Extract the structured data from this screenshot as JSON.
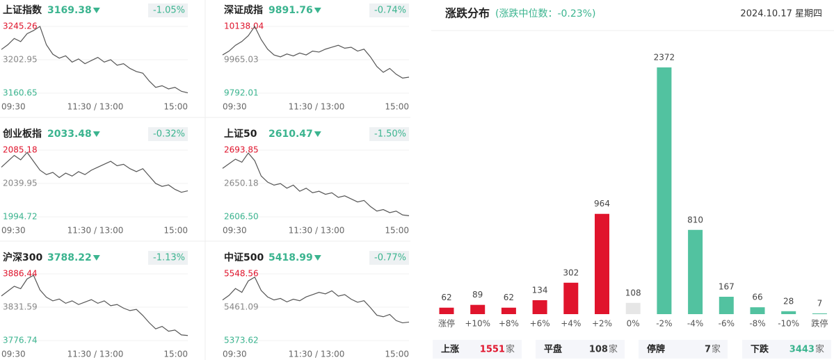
{
  "chart_data": [
    {
      "type": "line",
      "title": "上证指数",
      "price": "3169.38",
      "change": "-1.05%",
      "color": "#555555",
      "xtick_labels": [
        "09:30",
        "11:30 / 13:00",
        "15:00"
      ],
      "ylim": [
        3160.65,
        3245.26
      ],
      "yticks": [
        3160.65,
        3202.95,
        3245.26
      ],
      "tick_colors": [
        "#3bb48f",
        "#888888",
        "#e0142c"
      ],
      "grid": true,
      "values": [
        3216,
        3222,
        3230,
        3226,
        3236,
        3240,
        3245.26,
        3222,
        3210,
        3205,
        3208,
        3200,
        3204,
        3198,
        3202,
        3206,
        3200,
        3203,
        3196,
        3198,
        3192,
        3188,
        3186,
        3176,
        3168,
        3170,
        3166,
        3168,
        3163,
        3161
      ]
    },
    {
      "type": "line",
      "title": "深证成指",
      "price": "9891.76",
      "change": "-0.74%",
      "color": "#555555",
      "xtick_labels": [
        "09:30",
        "11:30 / 13:00",
        "15:00"
      ],
      "ylim": [
        9792.01,
        10138.04
      ],
      "yticks": [
        9792.01,
        9965.03,
        10138.04
      ],
      "tick_colors": [
        "#3bb48f",
        "#888888",
        "#e0142c"
      ],
      "grid": true,
      "values": [
        9990,
        10010,
        10040,
        10060,
        10090,
        10138,
        10070,
        10020,
        9990,
        9980,
        9995,
        9985,
        10000,
        9990,
        10010,
        10005,
        10020,
        10030,
        10040,
        10025,
        10030,
        10010,
        10020,
        9980,
        9930,
        9900,
        9920,
        9890,
        9870,
        9875
      ]
    },
    {
      "type": "line",
      "title": "创业板指",
      "price": "2033.48",
      "change": "-0.32%",
      "color": "#555555",
      "xtick_labels": [
        "09:30",
        "11:30 / 13:00",
        "15:00"
      ],
      "ylim": [
        1994.72,
        2085.18
      ],
      "yticks": [
        1994.72,
        2039.95,
        2085.18
      ],
      "tick_colors": [
        "#3bb48f",
        "#888888",
        "#e0142c"
      ],
      "grid": true,
      "values": [
        2062,
        2070,
        2078,
        2072,
        2082,
        2070,
        2058,
        2052,
        2055,
        2048,
        2054,
        2050,
        2056,
        2052,
        2058,
        2062,
        2066,
        2070,
        2064,
        2066,
        2060,
        2056,
        2060,
        2050,
        2040,
        2036,
        2038,
        2032,
        2028,
        2030
      ]
    },
    {
      "type": "line",
      "title": "上证50",
      "price": "2610.47",
      "change": "-1.50%",
      "color": "#555555",
      "xtick_labels": [
        "09:30",
        "11:30 / 13:00",
        "15:00"
      ],
      "ylim": [
        2606.5,
        2693.85
      ],
      "yticks": [
        {
          "value": 2606.5,
          "label": "2606.50"
        },
        2650.18,
        2693.85
      ],
      "tick_colors": [
        "#3bb48f",
        "#888888",
        "#e0142c"
      ],
      "grid": true,
      "values": [
        2670,
        2676,
        2682,
        2678,
        2690,
        2680,
        2660,
        2652,
        2648,
        2650,
        2644,
        2648,
        2640,
        2644,
        2638,
        2640,
        2636,
        2638,
        2632,
        2634,
        2630,
        2626,
        2628,
        2620,
        2614,
        2616,
        2612,
        2614,
        2609,
        2608
      ]
    },
    {
      "type": "line",
      "title": "沪深300",
      "price": "3788.22",
      "change": "-1.13%",
      "color": "#555555",
      "xtick_labels": [
        "09:30",
        "11:30 / 13:00",
        "15:00"
      ],
      "ylim": [
        3776.74,
        3886.44
      ],
      "yticks": [
        3776.74,
        3831.59,
        3886.44
      ],
      "tick_colors": [
        "#3bb48f",
        "#888888",
        "#e0142c"
      ],
      "grid": true,
      "values": [
        3850,
        3858,
        3866,
        3862,
        3878,
        3884,
        3860,
        3848,
        3842,
        3845,
        3838,
        3842,
        3836,
        3840,
        3844,
        3838,
        3842,
        3834,
        3836,
        3830,
        3826,
        3828,
        3818,
        3806,
        3796,
        3800,
        3792,
        3794,
        3786,
        3785
      ]
    },
    {
      "type": "line",
      "title": "中证500",
      "price": "5418.99",
      "change": "-0.77%",
      "color": "#555555",
      "xtick_labels": [
        "09:30",
        "11:30 / 13:00",
        "15:00"
      ],
      "ylim": [
        5373.62,
        5548.56
      ],
      "yticks": [
        5373.62,
        5461.09,
        5548.56
      ],
      "tick_colors": [
        "#3bb48f",
        "#888888",
        "#e0142c"
      ],
      "grid": true,
      "values": [
        5480,
        5492,
        5510,
        5500,
        5530,
        5540,
        5505,
        5488,
        5480,
        5484,
        5475,
        5482,
        5478,
        5488,
        5494,
        5500,
        5496,
        5504,
        5490,
        5494,
        5482,
        5474,
        5478,
        5460,
        5440,
        5436,
        5442,
        5426,
        5420,
        5422
      ]
    },
    {
      "type": "bar",
      "title": "涨跌分布",
      "subtitle": "(涨跌中位数：-0.23%)",
      "date": "2024.10.17 星期四",
      "categories": [
        "涨停",
        "+10%",
        "+8%",
        "+6%",
        "+4%",
        "+2%",
        "0%",
        "-2%",
        "-4%",
        "-6%",
        "-8%",
        "-10%",
        "跌停"
      ],
      "values": [
        62,
        89,
        62,
        134,
        302,
        964,
        108,
        2372,
        810,
        167,
        66,
        28,
        7
      ],
      "colors": [
        "#e0142c",
        "#e0142c",
        "#e0142c",
        "#e0142c",
        "#e0142c",
        "#e0142c",
        "#e6e6e6",
        "#52c2a0",
        "#52c2a0",
        "#52c2a0",
        "#52c2a0",
        "#52c2a0",
        "#52c2a0"
      ]
    }
  ],
  "summary": [
    {
      "label": "上涨",
      "value": "1551",
      "unit": "家",
      "color": "#e0142c"
    },
    {
      "label": "平盘",
      "value": "108",
      "unit": "家",
      "color": "#333333"
    },
    {
      "label": "停牌",
      "value": "7",
      "unit": "家",
      "color": "#333333"
    },
    {
      "label": "下跌",
      "value": "3443",
      "unit": "家",
      "color": "#3bb48f"
    }
  ]
}
